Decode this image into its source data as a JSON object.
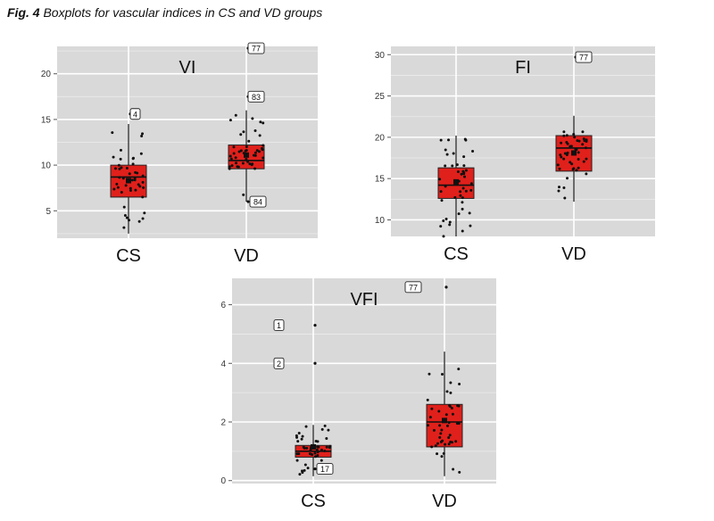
{
  "figure": {
    "fig_label": "Fig. 4",
    "caption": "Boxplots for vascular indices in CS and VD groups"
  },
  "chart_data": [
    {
      "type": "boxplot",
      "title": "VI",
      "categories": [
        "CS",
        "VD"
      ],
      "ylim": [
        2,
        23
      ],
      "yticks": [
        5,
        10,
        15,
        20
      ],
      "grid": true,
      "box_color": "#e0201b",
      "panel_bg": "#d9d9d9",
      "boxes": [
        {
          "name": "CS",
          "min": 2.5,
          "q1": 6.5,
          "median": 8.7,
          "q3": 10.0,
          "max": 14.5,
          "mean": 8.3
        },
        {
          "name": "VD",
          "min": 6.0,
          "q1": 9.6,
          "median": 10.5,
          "q3": 12.2,
          "max": 16.0,
          "mean": 11.1
        }
      ],
      "outliers": [
        {
          "group": "CS",
          "y": 15.6,
          "label": "4"
        },
        {
          "group": "VD",
          "y": 22.8,
          "label": "77"
        },
        {
          "group": "VD",
          "y": 17.5,
          "label": "83"
        },
        {
          "group": "VD",
          "y": 6.0,
          "label": "84"
        }
      ]
    },
    {
      "type": "boxplot",
      "title": "FI",
      "categories": [
        "CS",
        "VD"
      ],
      "ylim": [
        8,
        31
      ],
      "yticks": [
        10,
        15,
        20,
        25,
        30
      ],
      "grid": true,
      "box_color": "#e0201b",
      "panel_bg": "#d9d9d9",
      "boxes": [
        {
          "name": "CS",
          "min": 8.0,
          "q1": 12.6,
          "median": 14.2,
          "q3": 16.3,
          "max": 20.2,
          "mean": 14.6
        },
        {
          "name": "VD",
          "min": 12.2,
          "q1": 15.9,
          "median": 18.7,
          "q3": 20.2,
          "max": 22.6,
          "mean": 18.1
        }
      ],
      "outliers": [
        {
          "group": "VD",
          "y": 29.7,
          "label": "77"
        }
      ]
    },
    {
      "type": "boxplot",
      "title": "VFI",
      "categories": [
        "CS",
        "VD"
      ],
      "ylim": [
        -0.1,
        6.9
      ],
      "yticks": [
        0,
        2,
        4,
        6
      ],
      "grid": true,
      "box_color": "#e0201b",
      "panel_bg": "#d9d9d9",
      "boxes": [
        {
          "name": "CS",
          "min": 0.15,
          "q1": 0.8,
          "median": 1.0,
          "q3": 1.2,
          "max": 1.9,
          "mean": 1.15
        },
        {
          "name": "VD",
          "min": 0.15,
          "q1": 1.15,
          "median": 2.0,
          "q3": 2.6,
          "max": 4.4,
          "mean": 2.05
        }
      ],
      "outliers": [
        {
          "group": "CS",
          "y": 5.3,
          "label": "1"
        },
        {
          "group": "CS",
          "y": 4.0,
          "label": "2"
        },
        {
          "group": "CS",
          "y": 0.4,
          "label": "17"
        },
        {
          "group": "VD",
          "y": 6.6,
          "label": "77"
        }
      ]
    }
  ]
}
